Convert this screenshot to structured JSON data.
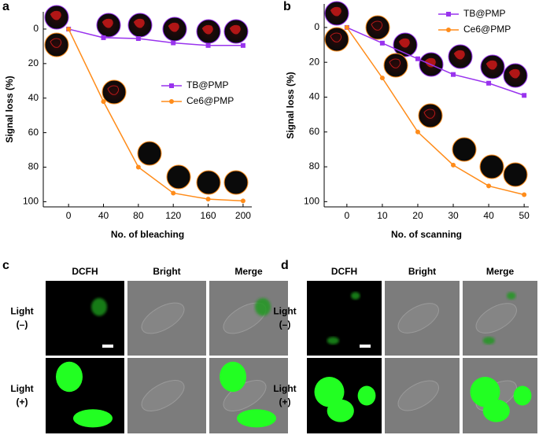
{
  "chart_data": [
    {
      "type": "line",
      "panel_label": "a",
      "xlabel": "No. of bleaching",
      "ylabel": "Signal loss (%)",
      "x": [
        0,
        40,
        80,
        120,
        160,
        200
      ],
      "series": [
        {
          "name": "TB@PMP",
          "color": "#9933ee",
          "marker": "square",
          "values": [
            0,
            5,
            5.5,
            8,
            9.5,
            9.5
          ]
        },
        {
          "name": "Ce6@PMP",
          "color": "#ff8c1a",
          "marker": "circle",
          "values": [
            0,
            42,
            80,
            95,
            98.5,
            99.5
          ]
        }
      ],
      "xlim": [
        -29,
        210
      ],
      "xticks": [
        0,
        40,
        80,
        120,
        160,
        200
      ],
      "ylim": [
        103,
        -10
      ],
      "yticks": [
        0,
        20,
        40,
        60,
        80,
        100
      ],
      "legend": "center right"
    },
    {
      "type": "line",
      "panel_label": "b",
      "xlabel": "No. of scanning",
      "ylabel": "Signal loss (%)",
      "x": [
        0,
        10,
        20,
        30,
        40,
        50
      ],
      "series": [
        {
          "name": "TB@PMP",
          "color": "#9933ee",
          "marker": "square",
          "values": [
            0,
            9,
            18,
            27,
            32,
            39
          ]
        },
        {
          "name": "Ce6@PMP",
          "color": "#ff8c1a",
          "marker": "circle",
          "values": [
            0,
            29,
            60,
            79,
            91,
            96
          ]
        }
      ],
      "xlim": [
        -6.4,
        51.3
      ],
      "xticks": [
        0,
        10,
        20,
        30,
        40,
        50
      ],
      "ylim": [
        103,
        -13.5
      ],
      "yticks": [
        0,
        20,
        40,
        60,
        80,
        100
      ],
      "legend": "upper right"
    }
  ],
  "micrographs": [
    {
      "panel_label": "c",
      "columns": [
        "DCFH",
        "Bright",
        "Merge"
      ],
      "rows": [
        [
          "Light",
          "(–)"
        ],
        [
          "Light",
          "(+)"
        ]
      ]
    },
    {
      "panel_label": "d",
      "columns": [
        "DCFH",
        "Bright",
        "Merge"
      ],
      "rows": [
        [
          "Light",
          "(–)"
        ],
        [
          "Light",
          "(+)"
        ]
      ]
    }
  ]
}
